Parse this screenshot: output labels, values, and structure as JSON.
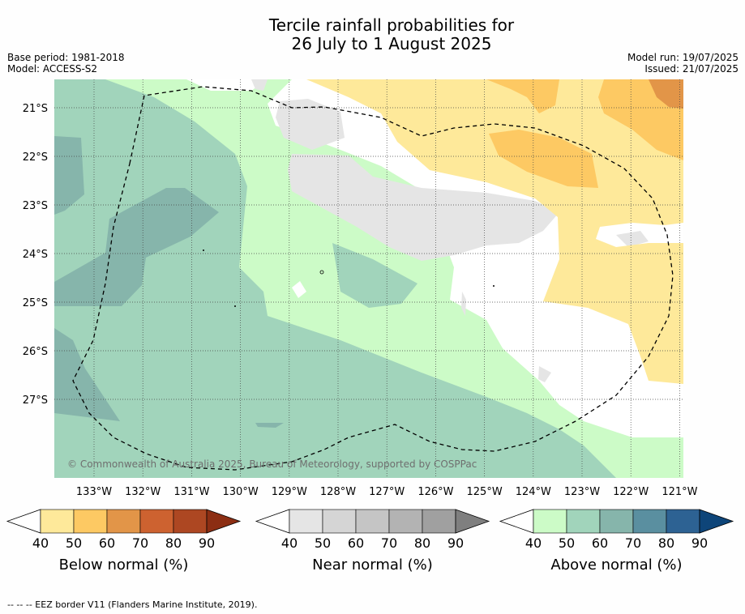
{
  "header": {
    "title_line1": "Tercile rainfall probabilities for",
    "title_line2": "26 July to 1 August 2025",
    "base_period": "Base period: 1981-2018",
    "model": "Model: ACCESS-S2",
    "model_run": "Model run: 19/07/2025",
    "issued": "Issued: 21/07/2025"
  },
  "chart_data": {
    "type": "heatmap",
    "title": "Tercile rainfall probabilities for 26 July to 1 August 2025",
    "lat_labels": [
      "21°S",
      "22°S",
      "23°S",
      "24°S",
      "25°S",
      "26°S",
      "27°S"
    ],
    "lon_labels": [
      "133°W",
      "132°W",
      "131°W",
      "130°W",
      "129°W",
      "128°W",
      "127°W",
      "126°W",
      "125°W",
      "124°W",
      "123°W",
      "122°W",
      "121°W"
    ],
    "grid": true,
    "copyright": "© Commonwealth of Australia 2025, Bureau of Meteorology, supported by COSPPac",
    "colorbars": [
      {
        "label": "Below normal (%)",
        "ticks": [
          "40",
          "50",
          "60",
          "70",
          "80",
          "90"
        ],
        "colors": [
          "#ffffff",
          "#fee99a",
          "#fdc963",
          "#e29548",
          "#cd6230",
          "#ad4722",
          "#8c2e13"
        ]
      },
      {
        "label": "Near normal (%)",
        "ticks": [
          "40",
          "50",
          "60",
          "70",
          "80",
          "90"
        ],
        "colors": [
          "#ffffff",
          "#e5e5e5",
          "#d5d5d5",
          "#c5c5c5",
          "#b3b3b3",
          "#a0a0a0",
          "#7f7f7f"
        ]
      },
      {
        "label": "Above normal (%)",
        "ticks": [
          "40",
          "50",
          "60",
          "70",
          "80",
          "90"
        ],
        "colors": [
          "#ffffff",
          "#ccfbc7",
          "#a1d4bb",
          "#86b5ab",
          "#5a8fa0",
          "#2d6293",
          "#0e4579"
        ]
      }
    ]
  },
  "footer": "--  --  -- EEZ border V11 (Flanders Marine Institute, 2019)."
}
